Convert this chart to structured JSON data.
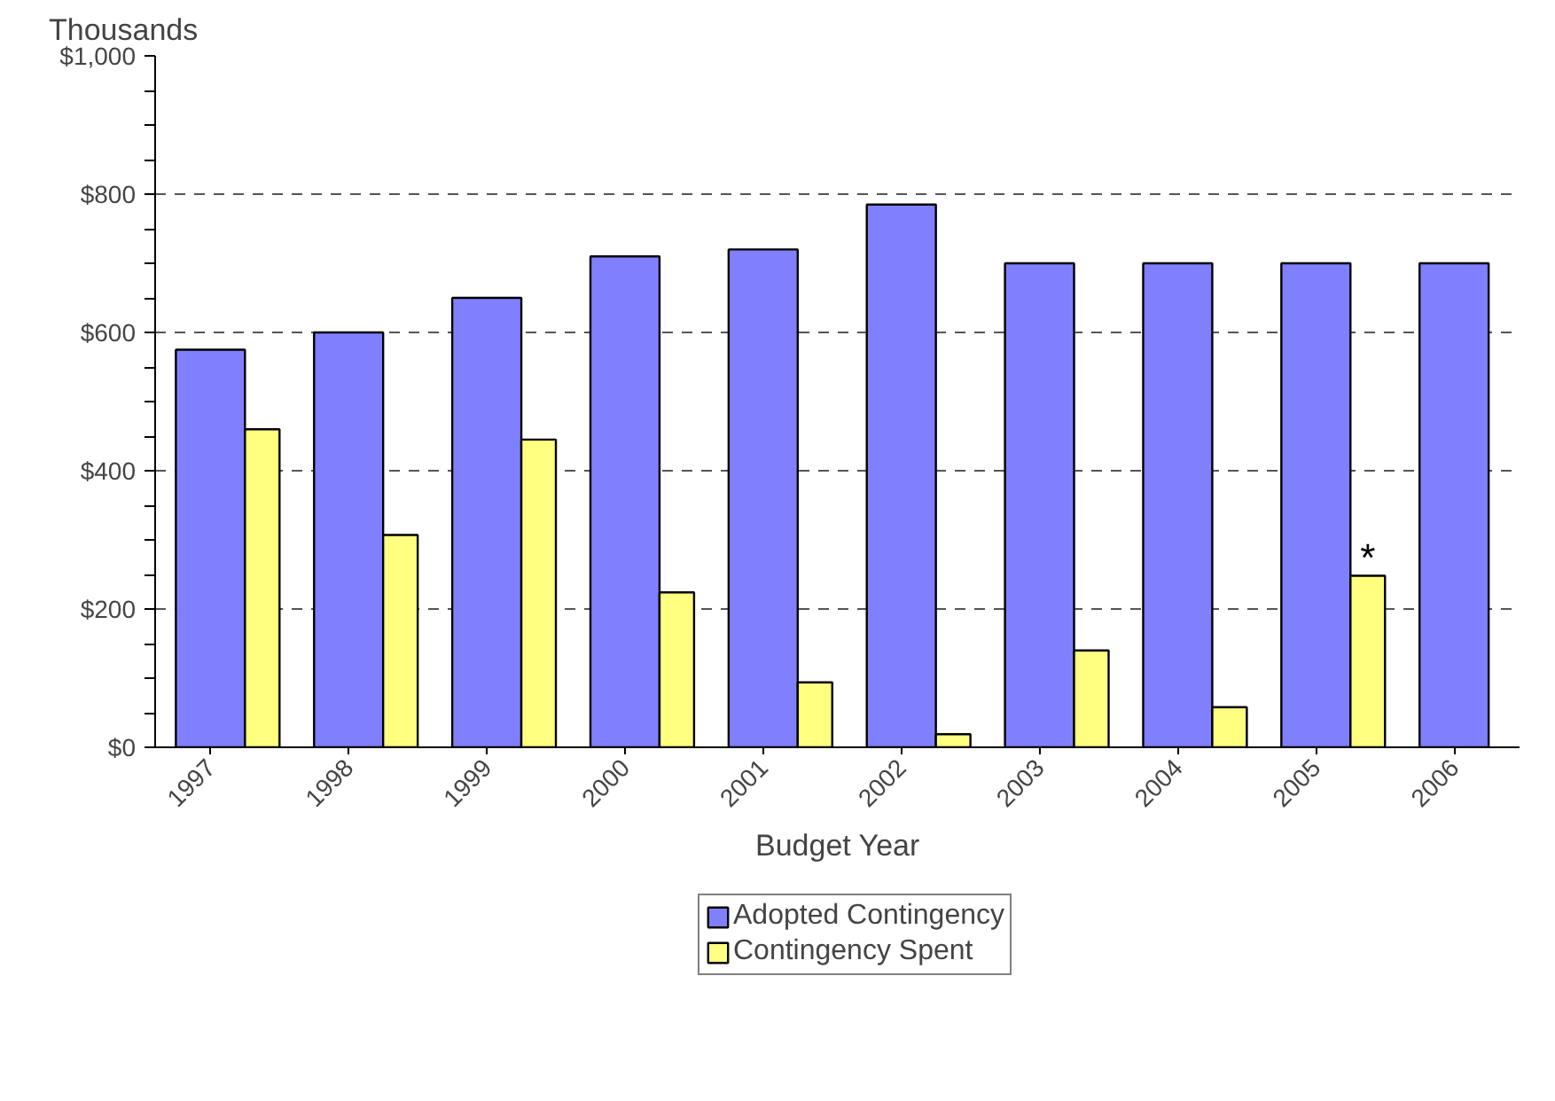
{
  "chart_data": {
    "type": "bar",
    "ylabel": "Thousands",
    "xlabel": "Budget Year",
    "categories": [
      "1997",
      "1998",
      "1999",
      "2000",
      "2001",
      "2002",
      "2003",
      "2004",
      "2005",
      "2006"
    ],
    "series": [
      {
        "name": "Adopted Contingency",
        "color": "#8080ff",
        "values": [
          575,
          600,
          650,
          710,
          720,
          785,
          700,
          700,
          700,
          700
        ]
      },
      {
        "name": "Contingency Spent",
        "color": "#ffff80",
        "values": [
          460,
          307,
          445,
          224,
          94,
          19,
          140,
          58,
          248,
          null
        ]
      }
    ],
    "ylim": [
      0,
      1000
    ],
    "yticks": [
      {
        "value": 0,
        "label": "$0"
      },
      {
        "value": 50,
        "label": null
      },
      {
        "value": 100,
        "label": null
      },
      {
        "value": 150,
        "label": null
      },
      {
        "value": 200,
        "label": "$200"
      },
      {
        "value": 250,
        "label": null
      },
      {
        "value": 300,
        "label": null
      },
      {
        "value": 350,
        "label": null
      },
      {
        "value": 400,
        "label": "$400"
      },
      {
        "value": 450,
        "label": null
      },
      {
        "value": 500,
        "label": null
      },
      {
        "value": 550,
        "label": null
      },
      {
        "value": 600,
        "label": "$600"
      },
      {
        "value": 650,
        "label": null
      },
      {
        "value": 700,
        "label": null
      },
      {
        "value": 750,
        "label": null
      },
      {
        "value": 800,
        "label": "$800"
      },
      {
        "value": 850,
        "label": null
      },
      {
        "value": 900,
        "label": null
      },
      {
        "value": 950,
        "label": null
      },
      {
        "value": 1000,
        "label": "$1,000"
      }
    ],
    "grid": "y",
    "legend": "bottom",
    "annotations": [
      "*"
    ]
  }
}
